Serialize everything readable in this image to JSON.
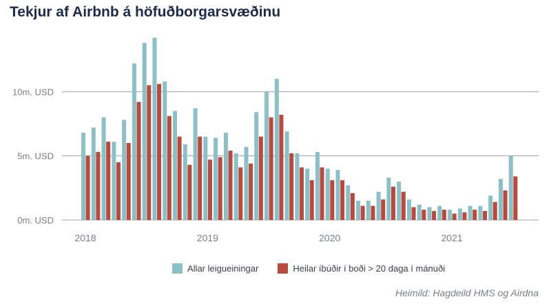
{
  "title": "Tekjur af Airbnb á höfuðborgarsvæðinu",
  "source": "Heimild: Hagdeild HMS og Airdna",
  "colors": {
    "series1": "#8ac0c6",
    "series2": "#b84a3e",
    "grid": "#9aa0a6"
  },
  "chart_data": {
    "type": "bar",
    "title": "Tekjur af Airbnb á höfuðborgarsvæðinu",
    "xlabel": "",
    "ylabel": "",
    "ylim": [
      0,
      15
    ],
    "y_ticks": [
      {
        "value": 0,
        "label": "0m. USD"
      },
      {
        "value": 5,
        "label": "5m. USD"
      },
      {
        "value": 10,
        "label": "10m. USD"
      }
    ],
    "x_ticks": [
      "2018",
      "2019",
      "2020",
      "2021"
    ],
    "grid": true,
    "legend_position": "bottom",
    "categories": [
      "2018-01",
      "2018-02",
      "2018-03",
      "2018-04",
      "2018-05",
      "2018-06",
      "2018-07",
      "2018-08",
      "2018-09",
      "2018-10",
      "2018-11",
      "2018-12",
      "2019-01",
      "2019-02",
      "2019-03",
      "2019-04",
      "2019-05",
      "2019-06",
      "2019-07",
      "2019-08",
      "2019-09",
      "2019-10",
      "2019-11",
      "2019-12",
      "2020-01",
      "2020-02",
      "2020-03",
      "2020-04",
      "2020-05",
      "2020-06",
      "2020-07",
      "2020-08",
      "2020-09",
      "2020-10",
      "2020-11",
      "2020-12",
      "2021-01",
      "2021-02",
      "2021-03",
      "2021-04",
      "2021-05",
      "2021-06",
      "2021-07"
    ],
    "series": [
      {
        "name": "Allar leigueiningar",
        "values": [
          6.8,
          7.2,
          8.0,
          6.1,
          7.8,
          12.2,
          13.8,
          14.2,
          10.8,
          8.5,
          5.9,
          8.7,
          6.5,
          6.4,
          6.8,
          5.2,
          5.7,
          8.4,
          10.0,
          11.0,
          6.9,
          5.2,
          4.0,
          5.3,
          4.0,
          3.9,
          2.7,
          1.5,
          1.5,
          2.2,
          3.3,
          3.0,
          1.6,
          1.2,
          1.0,
          1.1,
          0.8,
          0.9,
          1.1,
          1.1,
          1.9,
          3.2,
          5.0
        ]
      },
      {
        "name": "Heilar íbúðir í boði > 20 daga í mánuði",
        "values": [
          5.0,
          5.3,
          6.1,
          4.5,
          6.0,
          9.2,
          10.5,
          10.6,
          8.1,
          6.5,
          4.3,
          6.5,
          4.7,
          4.9,
          5.4,
          4.1,
          4.4,
          6.5,
          8.0,
          8.2,
          5.2,
          4.1,
          3.1,
          4.1,
          3.1,
          3.1,
          2.1,
          1.1,
          1.1,
          1.6,
          2.6,
          2.2,
          1.0,
          0.8,
          0.7,
          0.8,
          0.5,
          0.6,
          0.8,
          0.7,
          1.4,
          2.3,
          3.4
        ]
      }
    ]
  }
}
